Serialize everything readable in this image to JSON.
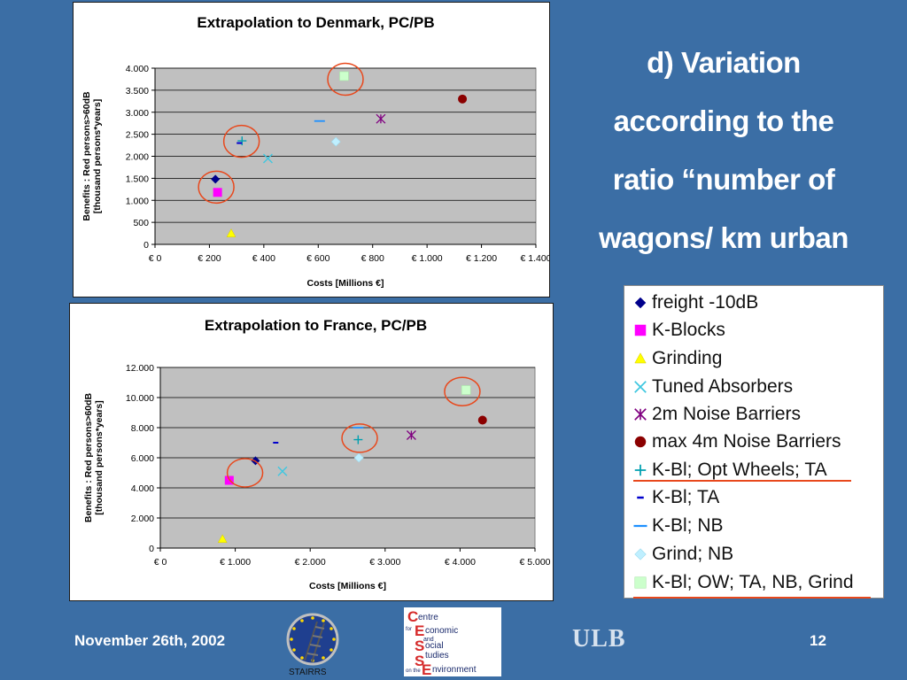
{
  "heading": [
    "d) Variation",
    "according to the",
    "ratio “number of",
    "wagons/ km urban",
    "”"
  ],
  "legend": [
    {
      "label": "freight -10dB",
      "marker": "diamond",
      "color": "#00008b"
    },
    {
      "label": "K-Blocks",
      "marker": "square",
      "color": "#ff00ff"
    },
    {
      "label": "Grinding",
      "marker": "triangle",
      "color": "#ffff00"
    },
    {
      "label": "Tuned Absorbers",
      "marker": "x",
      "color": "#3fc7e0"
    },
    {
      "label": "2m Noise Barriers",
      "marker": "asterisk",
      "color": "#800080"
    },
    {
      "label": "max 4m Noise Barriers",
      "marker": "circle",
      "color": "#8b0000"
    },
    {
      "label": "K-Bl; Opt Wheels; TA",
      "marker": "plus",
      "color": "#00a0b0"
    },
    {
      "label": "K-Bl; TA",
      "marker": "dash-short",
      "color": "#0000cd"
    },
    {
      "label": "K-Bl; NB",
      "marker": "dash-long",
      "color": "#1e90ff"
    },
    {
      "label": "Grind; NB",
      "marker": "diamond-light",
      "color": "#bfefff"
    },
    {
      "label": "K-Bl; OW; TA, NB, Grind",
      "marker": "square-light",
      "color": "#ccffcc"
    }
  ],
  "footer": {
    "date": "November 26th, 2002",
    "page": "12",
    "ulb": "ULB",
    "stairrs": "STAIRRS"
  },
  "chart_data": [
    {
      "type": "scatter",
      "title": "Extrapolation to Denmark, PC/PB",
      "xlabel": "Costs [Millions €]",
      "ylabel": [
        "Benefits : Red persons>60dB",
        "[thousand persons*years]"
      ],
      "xlim": [
        0,
        1400
      ],
      "ylim": [
        0,
        4000
      ],
      "xticks": [
        0,
        200,
        400,
        600,
        800,
        1000,
        1200,
        1400
      ],
      "xtick_labels": [
        "€ 0",
        "€ 200",
        "€ 400",
        "€ 600",
        "€ 800",
        "€ 1.000",
        "€ 1.200",
        "€ 1.400"
      ],
      "yticks": [
        0,
        500,
        1000,
        1500,
        2000,
        2500,
        3000,
        3500,
        4000
      ],
      "ytick_labels": [
        "0",
        "500",
        "1.000",
        "1.500",
        "2.000",
        "2.500",
        "3.000",
        "3.500",
        "4.000"
      ],
      "grid": true,
      "series": [
        {
          "name": "freight -10dB",
          "x": [
            222
          ],
          "y": [
            1480
          ]
        },
        {
          "name": "K-Blocks",
          "x": [
            230
          ],
          "y": [
            1180
          ]
        },
        {
          "name": "Grinding",
          "x": [
            280
          ],
          "y": [
            250
          ]
        },
        {
          "name": "Tuned Absorbers",
          "x": [
            415
          ],
          "y": [
            1950
          ]
        },
        {
          "name": "2m Noise Barriers",
          "x": [
            830
          ],
          "y": [
            2850
          ]
        },
        {
          "name": "max 4m Noise Barriers",
          "x": [
            1130
          ],
          "y": [
            3300
          ]
        },
        {
          "name": "K-Bl; Opt Wheels; TA",
          "x": [
            320
          ],
          "y": [
            2350
          ]
        },
        {
          "name": "K-Bl; TA",
          "x": [
            310
          ],
          "y": [
            2300
          ]
        },
        {
          "name": "K-Bl; NB",
          "x": [
            605
          ],
          "y": [
            2800
          ]
        },
        {
          "name": "Grind; NB",
          "x": [
            665
          ],
          "y": [
            2330
          ]
        },
        {
          "name": "K-Bl; OW; TA, NB, Grind",
          "x": [
            695
          ],
          "y": [
            3820
          ]
        }
      ],
      "highlights": [
        {
          "x": 225,
          "y": 1300
        },
        {
          "x": 318,
          "y": 2340
        },
        {
          "x": 700,
          "y": 3750
        }
      ]
    },
    {
      "type": "scatter",
      "title": "Extrapolation to France, PC/PB",
      "xlabel": "Costs [Millions €]",
      "ylabel": [
        "Benefits : Red persons>60dB",
        "[thousand persons*years]"
      ],
      "xlim": [
        0,
        5000
      ],
      "ylim": [
        0,
        12000
      ],
      "xticks": [
        0,
        1000,
        2000,
        3000,
        4000,
        5000
      ],
      "xtick_labels": [
        "€ 0",
        "€ 1.000",
        "€ 2.000",
        "€ 3.000",
        "€ 4.000",
        "€ 5.000"
      ],
      "yticks": [
        0,
        2000,
        4000,
        6000,
        8000,
        10000,
        12000
      ],
      "ytick_labels": [
        "0",
        "2.000",
        "4.000",
        "6.000",
        "8.000",
        "10.000",
        "12.000"
      ],
      "grid": true,
      "series": [
        {
          "name": "freight -10dB",
          "x": [
            1270
          ],
          "y": [
            5800
          ]
        },
        {
          "name": "K-Blocks",
          "x": [
            920
          ],
          "y": [
            4500
          ]
        },
        {
          "name": "Grinding",
          "x": [
            830
          ],
          "y": [
            600
          ]
        },
        {
          "name": "Tuned Absorbers",
          "x": [
            1630
          ],
          "y": [
            5100
          ]
        },
        {
          "name": "2m Noise Barriers",
          "x": [
            3350
          ],
          "y": [
            7500
          ]
        },
        {
          "name": "max 4m Noise Barriers",
          "x": [
            4300
          ],
          "y": [
            8500
          ]
        },
        {
          "name": "K-Bl; Opt Wheels; TA",
          "x": [
            2640
          ],
          "y": [
            7200
          ]
        },
        {
          "name": "K-Bl; TA",
          "x": [
            1540
          ],
          "y": [
            7000
          ]
        },
        {
          "name": "K-Bl; NB",
          "x": [
            2640
          ],
          "y": [
            8000
          ]
        },
        {
          "name": "Grind; NB",
          "x": [
            2650
          ],
          "y": [
            6000
          ]
        },
        {
          "name": "K-Bl; OW; TA, NB, Grind",
          "x": [
            4080
          ],
          "y": [
            10500
          ]
        }
      ],
      "highlights": [
        {
          "x": 1130,
          "y": 5000
        },
        {
          "x": 2660,
          "y": 7300
        },
        {
          "x": 4030,
          "y": 10400
        }
      ]
    }
  ]
}
